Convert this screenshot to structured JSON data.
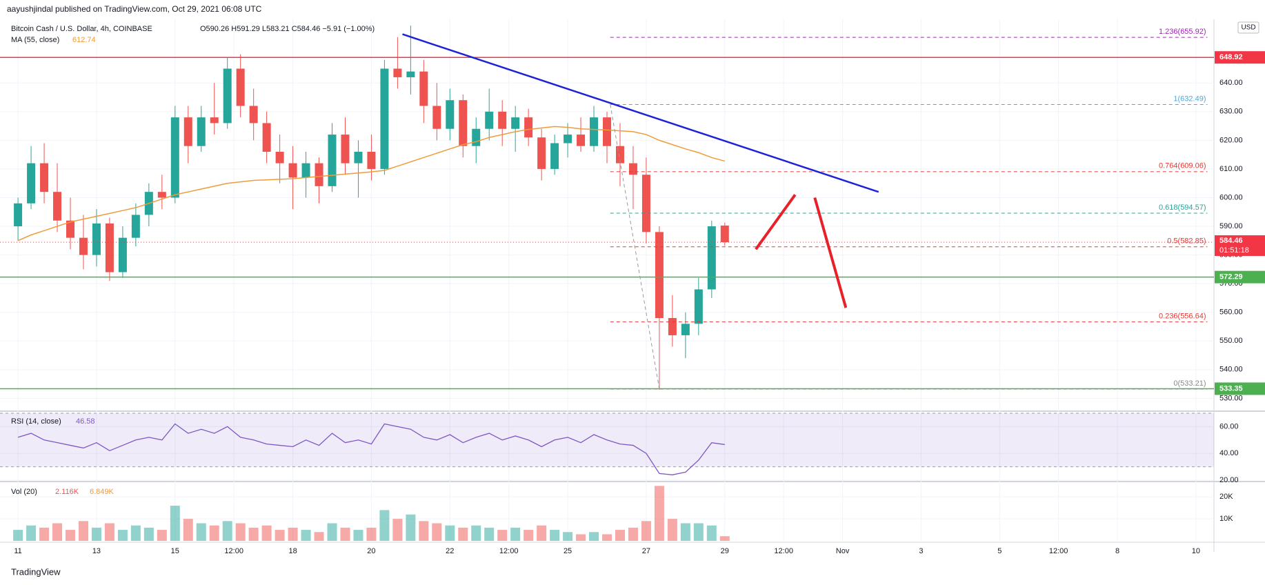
{
  "header": {
    "published": "aayushjindal published on TradingView.com, Oct 29, 2021 06:08 UTC",
    "footer": "TradingView",
    "currency": "USD"
  },
  "chart_data": [
    {
      "type": "candlestick",
      "title": "Bitcoin Cash / U.S. Dollar, 4h, COINBASE",
      "ohlc_text": "O590.26 H591.29 L583.21 C584.46 −5.91 (−1.00%)",
      "up_color": "#26a69a",
      "down_color": "#ef5350",
      "x": [
        0,
        8,
        16,
        24,
        32,
        40,
        48,
        56,
        64,
        72,
        80,
        88,
        96,
        104,
        112,
        120,
        128,
        136,
        144,
        152,
        160,
        168,
        176,
        184,
        192,
        200,
        208,
        216,
        224,
        232,
        240,
        248,
        256,
        264,
        272,
        280,
        288,
        296,
        304,
        312,
        320,
        328,
        336,
        344,
        352,
        360,
        368,
        376,
        384,
        392,
        400,
        408,
        416,
        424,
        432
      ],
      "open": [
        590,
        598,
        612,
        602,
        592,
        586,
        580,
        591,
        574,
        586,
        594,
        602,
        600,
        628,
        618,
        628,
        626,
        645,
        632,
        626,
        616,
        612,
        607,
        612,
        604,
        622,
        612,
        616,
        610,
        645,
        642,
        644,
        632,
        624,
        634,
        618,
        624,
        630,
        624,
        628,
        621,
        610,
        619,
        622,
        618,
        628,
        618,
        612,
        608,
        588,
        558,
        552,
        556,
        568,
        590.26
      ],
      "high": [
        600,
        618,
        619,
        612,
        600,
        594,
        596,
        593,
        590,
        598,
        605,
        608,
        632,
        632,
        632,
        640,
        649,
        650,
        638,
        630,
        622,
        618,
        616,
        614,
        626,
        628,
        620,
        622,
        648,
        656,
        660,
        648,
        640,
        638,
        636,
        628,
        638,
        634,
        632,
        631,
        624,
        622,
        626,
        628,
        632,
        630,
        626,
        618,
        614,
        590,
        566,
        560,
        572,
        592,
        591.29
      ],
      "low": [
        585,
        596,
        598,
        588,
        582,
        575,
        576,
        571,
        572,
        583,
        590,
        596,
        598,
        612,
        616,
        622,
        624,
        628,
        620,
        612,
        605,
        596,
        600,
        598,
        602,
        608,
        600,
        606,
        608,
        638,
        636,
        626,
        620,
        620,
        614,
        612,
        620,
        618,
        616,
        618,
        606,
        608,
        614,
        616,
        616,
        612,
        604,
        596,
        584,
        533,
        548,
        544,
        552,
        565,
        583.21
      ],
      "close": [
        598,
        612,
        602,
        592,
        586,
        580,
        591,
        574,
        586,
        594,
        602,
        600,
        628,
        618,
        628,
        626,
        645,
        632,
        626,
        616,
        612,
        607,
        612,
        604,
        622,
        612,
        616,
        610,
        645,
        642,
        644,
        632,
        624,
        634,
        618,
        624,
        630,
        624,
        628,
        621,
        610,
        619,
        622,
        618,
        628,
        618,
        612,
        608,
        588,
        558,
        552,
        556,
        568,
        590,
        584.46
      ],
      "xlim": [
        -11,
        731
      ],
      "xticks": [
        {
          "value": 0,
          "label": "11"
        },
        {
          "value": 48,
          "label": "13"
        },
        {
          "value": 96,
          "label": "15"
        },
        {
          "value": 132,
          "label": "12:00"
        },
        {
          "value": 168,
          "label": "18"
        },
        {
          "value": 216,
          "label": "20"
        },
        {
          "value": 264,
          "label": "22"
        },
        {
          "value": 300,
          "label": "12:00"
        },
        {
          "value": 336,
          "label": "25"
        },
        {
          "value": 384,
          "label": "27"
        },
        {
          "value": 432,
          "label": "29"
        },
        {
          "value": 468,
          "label": "12:00"
        },
        {
          "value": 504,
          "label": "Nov"
        },
        {
          "value": 552,
          "label": "3"
        },
        {
          "value": 600,
          "label": "5"
        },
        {
          "value": 636,
          "label": "12:00"
        },
        {
          "value": 672,
          "label": "8"
        },
        {
          "value": 720,
          "label": "10"
        }
      ],
      "ylim": [
        526,
        661
      ],
      "yticks": [
        {
          "value": 530,
          "label": "530.00"
        },
        {
          "value": 540,
          "label": "540.00"
        },
        {
          "value": 550,
          "label": "550.00"
        },
        {
          "value": 560,
          "label": "560.00"
        },
        {
          "value": 570,
          "label": "570.00"
        },
        {
          "value": 580,
          "label": "580.00"
        },
        {
          "value": 590,
          "label": "590.00"
        },
        {
          "value": 600,
          "label": "600.00"
        },
        {
          "value": 610,
          "label": "610.00"
        },
        {
          "value": 620,
          "label": "620.00"
        },
        {
          "value": 630,
          "label": "630.00"
        },
        {
          "value": 640,
          "label": "640.00"
        }
      ],
      "ma": {
        "name": "MA (55, close)",
        "color": "#f09a3a",
        "values": [
          585,
          587,
          588.5,
          590,
          591.5,
          592.5,
          593.5,
          594.5,
          595.5,
          596.5,
          598,
          599.5,
          601,
          602,
          603,
          604,
          605,
          605.5,
          606,
          606.2,
          606.4,
          606.6,
          607,
          607.4,
          607.8,
          608.2,
          608.6,
          609,
          609.5,
          611,
          612.5,
          614,
          615.5,
          617,
          618.5,
          619.5,
          621,
          622,
          623,
          623.8,
          624.3,
          624.8,
          624.5,
          624,
          623.8,
          623.6,
          623.3,
          623,
          622,
          620,
          618.5,
          617,
          615.7,
          614,
          612.74
        ]
      },
      "levels": [
        {
          "value": 648.92,
          "color": "#f23645"
        },
        {
          "value": 572.29,
          "color": "#4caf50"
        },
        {
          "value": 533.35,
          "color": "#4caf50"
        }
      ],
      "last": {
        "value": 584.46,
        "timer": "01:51:18",
        "color": "#f23645"
      },
      "fib_x": [
        362,
        727
      ],
      "fib": [
        {
          "label": "1.236(655.92)",
          "value": 655.92,
          "color": "#9c27b0"
        },
        {
          "label": "1(632.49)",
          "value": 632.49,
          "color": "#4ea7d8"
        },
        {
          "label": "0.764(609.06)",
          "value": 609.06,
          "color": "#e53935"
        },
        {
          "label": "0.618(594.57)",
          "value": 594.57,
          "color": "#26a69a"
        },
        {
          "label": "0.5(582.85)",
          "value": 582.85,
          "color": "#e53935"
        },
        {
          "label": "0.236(556.64)",
          "value": 556.64,
          "color": "#e53935"
        },
        {
          "label": "0(533.21)",
          "value": 533.21,
          "color": "#888888"
        }
      ],
      "fib_diagonal": {
        "x": [
          362,
          392
        ],
        "y": [
          632.49,
          533.21
        ],
        "color": "#999999"
      },
      "trendline": {
        "x": [
          235,
          526
        ],
        "y": [
          657,
          602
        ],
        "color": "#1e22d6"
      },
      "arrows": [
        {
          "x": [
            451,
            475
          ],
          "y": [
            582,
            601
          ]
        },
        {
          "x": [
            487,
            506
          ],
          "y": [
            600,
            561.6
          ]
        }
      ],
      "arrow_color": "#e8202a"
    },
    {
      "type": "line",
      "name": "RSI (14, close)",
      "color": "#7e57c2",
      "band": [
        30,
        70
      ],
      "band_color": "rgba(126,87,194,0.12)",
      "values": [
        52,
        55,
        50,
        48,
        46,
        44,
        48,
        42,
        46,
        50,
        52,
        50,
        62,
        55,
        58,
        55,
        60,
        52,
        50,
        47,
        46,
        45,
        50,
        46,
        55,
        48,
        50,
        47,
        62,
        60,
        58,
        52,
        50,
        54,
        48,
        52,
        55,
        50,
        53,
        50,
        45,
        50,
        52,
        48,
        54,
        50,
        47,
        46,
        40,
        25,
        24,
        26,
        35,
        48,
        46.58
      ],
      "ylim": [
        19,
        71
      ],
      "yticks": [
        {
          "value": 20,
          "label": "20.00"
        },
        {
          "value": 40,
          "label": "40.00"
        },
        {
          "value": 60,
          "label": "60.00"
        }
      ]
    },
    {
      "type": "bar",
      "name": "Vol (20)",
      "legend_values": [
        "2.116K",
        "6.849K"
      ],
      "legend_colors": [
        "#ef5350",
        "#f09a3a"
      ],
      "up_color": "rgba(38,166,154,0.5)",
      "down_color": "rgba(239,83,80,0.5)",
      "values": [
        5000,
        7000,
        6000,
        8000,
        5000,
        9000,
        6000,
        8000,
        5000,
        7000,
        6000,
        5000,
        16000,
        10000,
        8000,
        7000,
        9000,
        8000,
        6000,
        7000,
        5000,
        6000,
        5000,
        4000,
        8000,
        6000,
        5000,
        6000,
        14000,
        10000,
        12000,
        9000,
        8000,
        7000,
        6000,
        7000,
        6000,
        5000,
        6000,
        5000,
        7000,
        5000,
        4000,
        3000,
        4000,
        3000,
        5000,
        6000,
        9000,
        25000,
        10000,
        8000,
        8000,
        7000,
        2116
      ],
      "ylim": [
        0,
        27000
      ],
      "yticks": [
        {
          "value": 10000,
          "label": "10K"
        },
        {
          "value": 20000,
          "label": "20K"
        }
      ]
    }
  ]
}
